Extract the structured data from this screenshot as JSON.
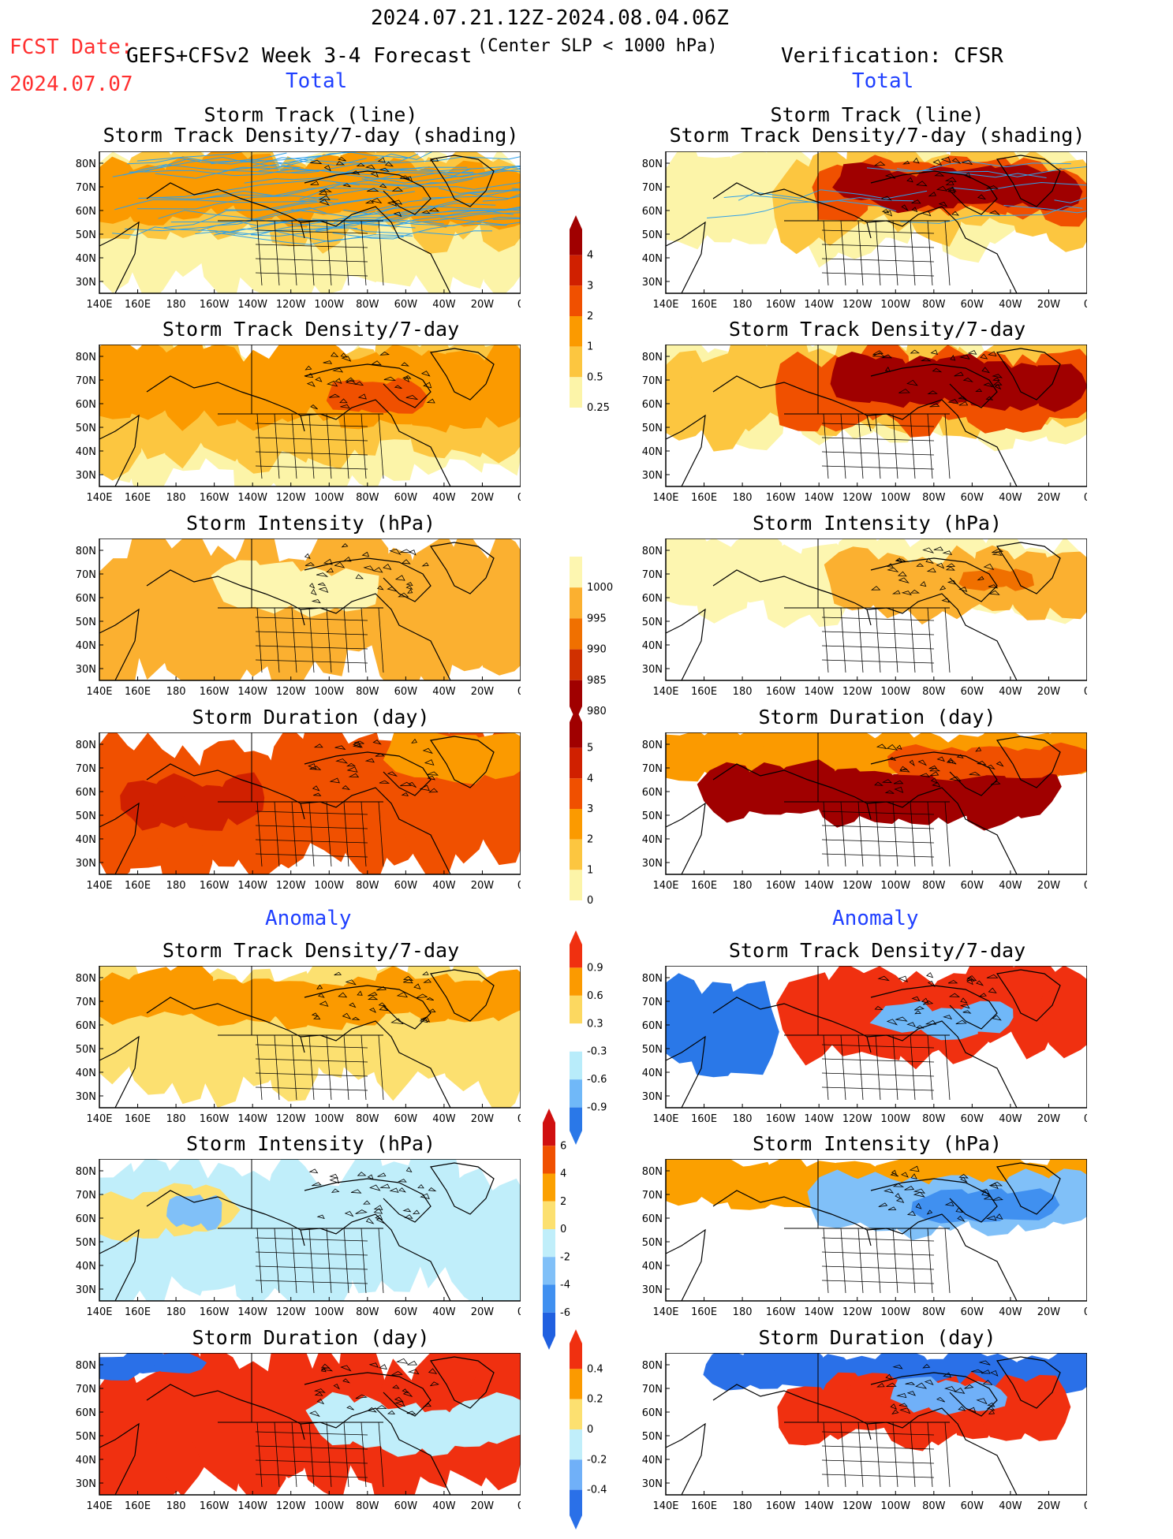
{
  "header": {
    "date_range": "2024.07.21.12Z-2024.08.04.06Z",
    "fcst_date_label": "FCST Date:",
    "fcst_date_value": "2024.07.07",
    "forecast_title": "GEFS+CFSv2 Week 3-4 Forecast",
    "criterion": "(Center SLP < 1000 hPa)",
    "verification": "Verification: CFSR"
  },
  "sections": {
    "total": "Total",
    "anomaly": "Anomaly"
  },
  "panel_titles": {
    "track_line": "Storm Track (line)",
    "track_shading": "Storm Track Density/7-day (shading)",
    "density": "Storm Track Density/7-day",
    "intensity": "Storm Intensity (hPa)",
    "duration": "Storm Duration (day)"
  },
  "axes": {
    "lat_labels": [
      "80N",
      "70N",
      "60N",
      "50N",
      "40N",
      "30N"
    ],
    "lon_labels": [
      "140E",
      "160E",
      "180",
      "160W",
      "140W",
      "120W",
      "100W",
      "80W",
      "60W",
      "40W",
      "20W",
      "0"
    ]
  },
  "colorbars": {
    "density_total": {
      "labels": [
        "4",
        "3",
        "2",
        "1",
        "0.5",
        "0.25"
      ],
      "colors": [
        "#a00000",
        "#d02000",
        "#f05000",
        "#fb9a00",
        "#fcc640",
        "#fcf4a8"
      ]
    },
    "intensity_total": {
      "labels": [
        "1000",
        "995",
        "990",
        "985",
        "980"
      ],
      "colors": [
        "#fdf6b0",
        "#fbb030",
        "#f07000",
        "#d03000",
        "#a00000"
      ]
    },
    "duration_total": {
      "labels": [
        "5",
        "4",
        "3",
        "2",
        "1",
        "0"
      ],
      "colors": [
        "#a00000",
        "#d02000",
        "#f05000",
        "#fb9a00",
        "#fcc640",
        "#fcf4a8"
      ]
    },
    "density_anom": {
      "labels": [
        "0.9",
        "0.6",
        "0.3",
        "-0.3",
        "-0.6",
        "-0.9"
      ],
      "colors": [
        "#f03010",
        "#fb9a00",
        "#fcd860",
        "#ffffff",
        "#b8ecfa",
        "#70b8f8",
        "#2a78e8"
      ]
    },
    "intensity_anom": {
      "labels": [
        "6",
        "4",
        "2",
        "0",
        "-2",
        "-4",
        "-6"
      ],
      "colors": [
        "#d01010",
        "#f05000",
        "#fba000",
        "#fce070",
        "#c0eefa",
        "#80c0f8",
        "#4090f0",
        "#2060e0"
      ]
    },
    "duration_anom": {
      "labels": [
        "0.4",
        "0.2",
        "0",
        "-0.2",
        "-0.4"
      ],
      "colors": [
        "#f03010",
        "#fb9a00",
        "#fce070",
        "#c0eefa",
        "#70b0f8",
        "#2a70e8"
      ]
    }
  }
}
